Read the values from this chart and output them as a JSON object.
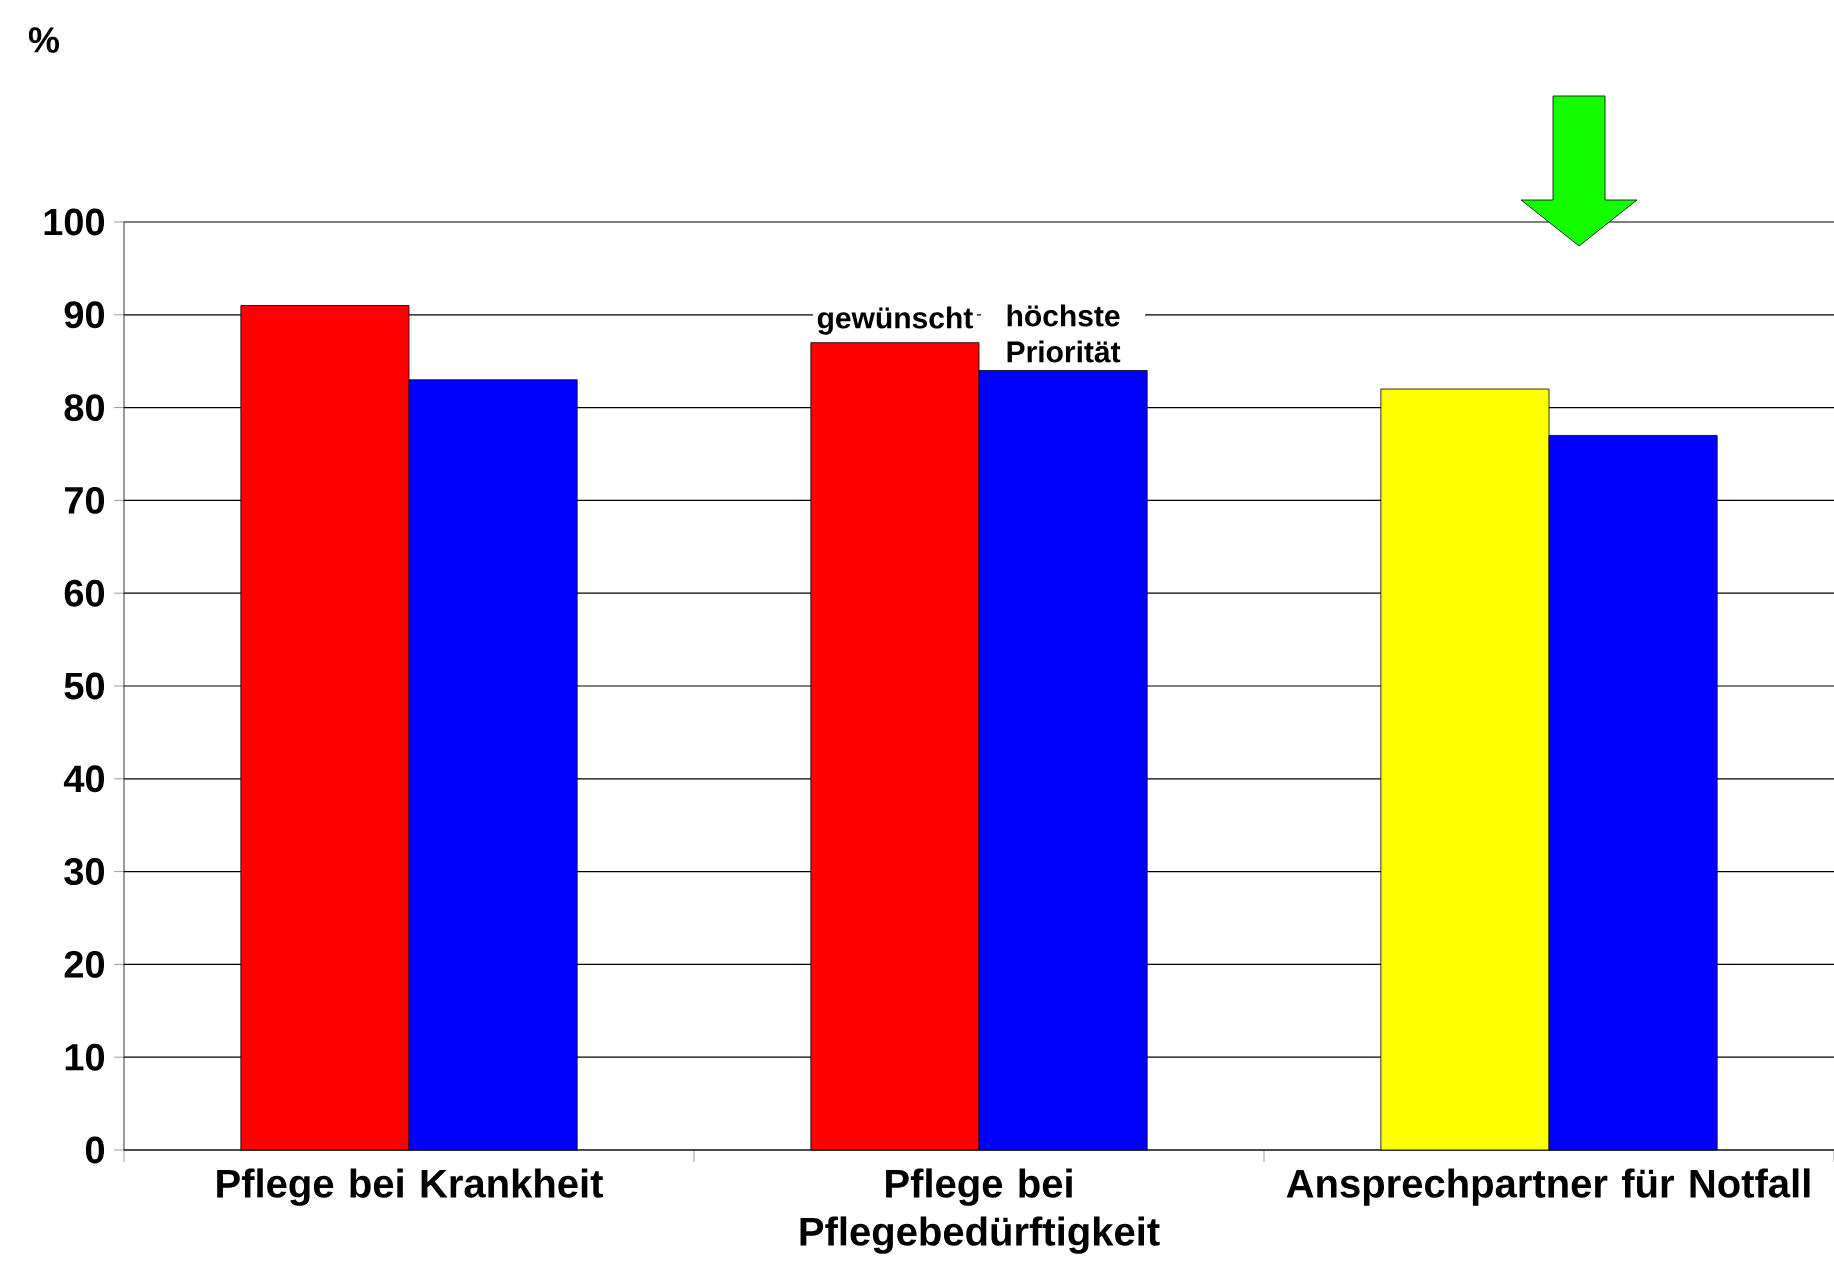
{
  "chart_data": {
    "type": "bar",
    "annotations": [
      "%"
    ],
    "categories": [
      "Pflege bei Krankheit",
      "Pflege bei Pflegebedürftigkeit",
      "Ansprechpartner für Notfall"
    ],
    "series": [
      {
        "name": "gewünscht",
        "colors": [
          "#ff0000",
          "#ff0000",
          "#ffff00"
        ],
        "values": [
          91,
          87,
          82
        ]
      },
      {
        "name": "höchste Priorität",
        "color": "#0000ff",
        "values": [
          83,
          84,
          77
        ]
      }
    ],
    "ylim": [
      0,
      100
    ],
    "yticks": [
      0,
      10,
      20,
      30,
      40,
      50,
      60,
      70,
      80,
      90,
      100
    ],
    "grid": "y",
    "legend": false
  }
}
